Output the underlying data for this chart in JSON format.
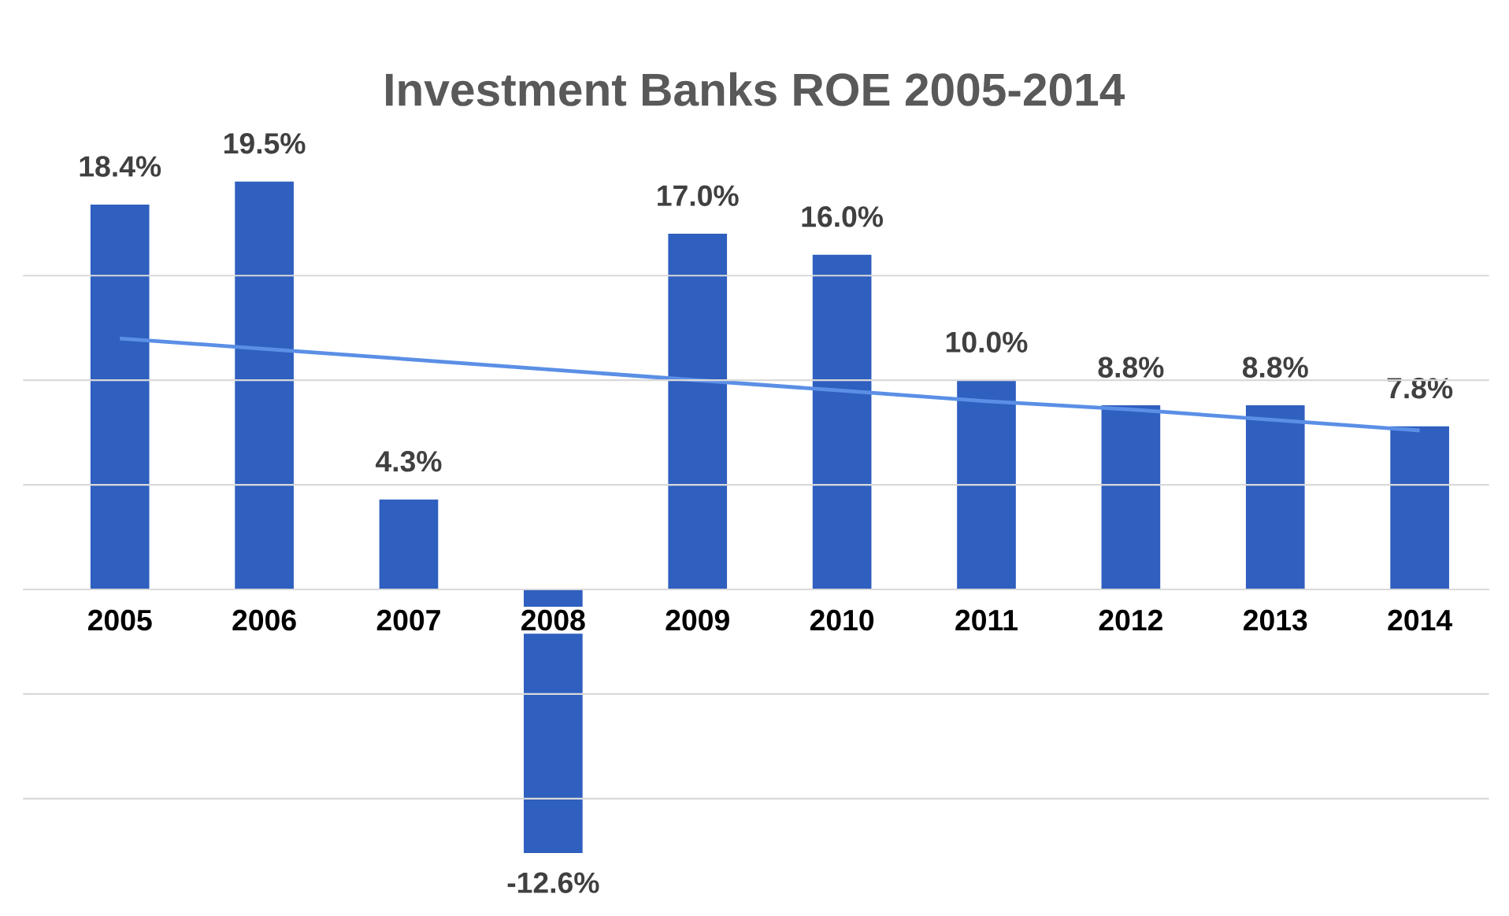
{
  "chart_data": {
    "type": "bar",
    "title": "Investment Banks ROE 2005-2014",
    "categories": [
      "2005",
      "2006",
      "2007",
      "2008",
      "2009",
      "2010",
      "2011",
      "2012",
      "2013",
      "2014"
    ],
    "series": [
      {
        "color": "#2f5fbf",
        "values": [
          18.4,
          19.5,
          4.3,
          -12.6,
          17.0,
          16.0,
          10.0,
          8.8,
          8.8,
          7.8
        ],
        "value_labels": [
          "18.4%",
          "19.5%",
          "4.3%",
          "-12.6%",
          "17.0%",
          "16.0%",
          "10.0%",
          "8.8%",
          "8.8%",
          "7.8%"
        ]
      },
      {
        "type": "line",
        "color": "#5b8fe6",
        "values": [
          12.0,
          11.5,
          11.0,
          10.5,
          10.0,
          9.5,
          9.0,
          8.6,
          8.1,
          7.6
        ]
      }
    ],
    "grid": "y",
    "tick_labels": "x"
  }
}
